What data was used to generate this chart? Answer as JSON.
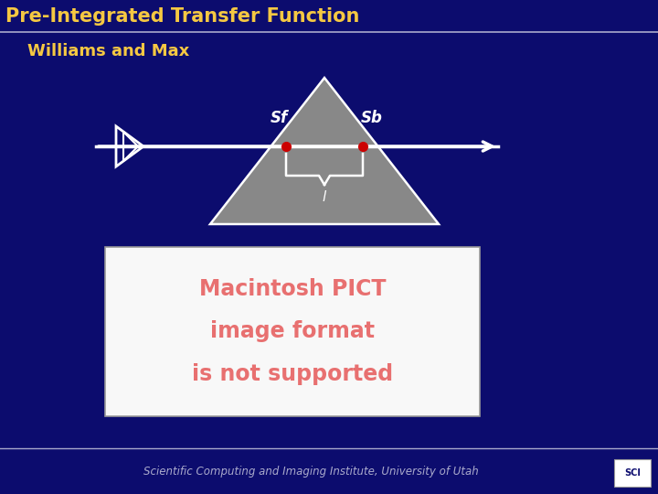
{
  "bg_color": "#0c0c6e",
  "title_text": "Pre-Integrated Transfer Function",
  "title_color": "#f5c842",
  "title_bar_color": "#aaaacc",
  "subtitle_text": "Williams and Max",
  "subtitle_color": "#f5c842",
  "footer_text": "Scientific Computing and Imaging Institute, University of Utah",
  "footer_color": "#aaaacc",
  "arrow_color": "#ffffff",
  "arrow_lw": 2.5,
  "triangle_color": "#888888",
  "triangle_outline": "#ffffff",
  "dot_color": "#cc0000",
  "sf_label": "Sf",
  "sb_label": "Sb",
  "l_label": "l",
  "label_color": "#ffffff",
  "brace_color": "#ffffff",
  "eye_color": "#ffffff",
  "box_bg": "#f8f8f8",
  "box_text1": "Macintosh PICT",
  "box_text2": "image format",
  "box_text3": "is not supported",
  "box_text_color": "#e87070"
}
